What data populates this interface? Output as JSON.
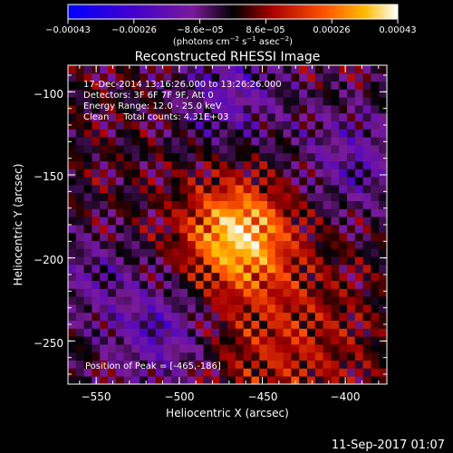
{
  "chart_data": {
    "type": "heatmap",
    "title": "Reconstructed RHESSI Image",
    "xlabel": "Heliocentric X (arcsec)",
    "ylabel": "Heliocentric Y (arcsec)",
    "xlim": [
      -567,
      -375
    ],
    "ylim": [
      -276,
      -84
    ],
    "x_ticks": [
      -550,
      -500,
      -450,
      -400
    ],
    "y_ticks": [
      -100,
      -150,
      -200,
      -250
    ],
    "x_tick_labels": [
      "−550",
      "−500",
      "−450",
      "−400"
    ],
    "y_tick_labels": [
      "−100",
      "−150",
      "−200",
      "−250"
    ],
    "colorbar": {
      "tick_labels": [
        "−0.00043",
        "−0.00026",
        "−8.6e−05",
        "8.6e−05",
        "0.00026",
        "0.00043"
      ],
      "range": [
        -0.00043,
        0.00043
      ],
      "unit_line1": "(photons cm",
      "unit_sup1": "−2",
      "unit_line2": " s",
      "unit_sup2": "−1",
      "unit_line3": " asec",
      "unit_sup3": "−2",
      "unit_close": ")"
    },
    "annotations": [
      "17-Dec-2014 13:16:26.000 to 13:26:26.000",
      "Detectors: 3F 6F 7F 9F, Att 0",
      "Energy Range: 12.0 - 25.0 keV",
      "Clean     Total counts: 4.31E+03"
    ],
    "peak_label": "Position of Peak = [-465,-186]",
    "peak": [
      -465,
      -186
    ],
    "grid": false
  },
  "footer": {
    "timestamp": "11-Sep-2017 01:07"
  }
}
